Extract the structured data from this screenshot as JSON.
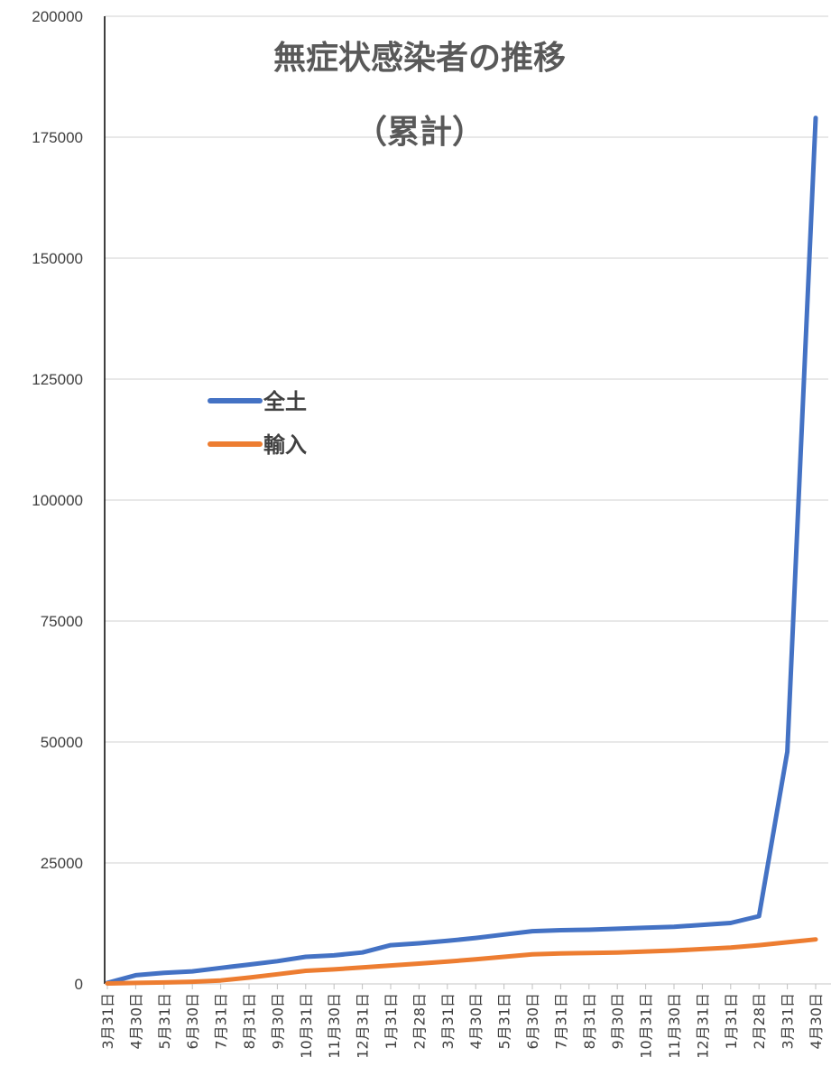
{
  "chart_data": {
    "type": "line",
    "title": "無症状感染者の推移",
    "subtitle": "（累計）",
    "xlabel": "",
    "ylabel": "",
    "ylim": [
      0,
      200000
    ],
    "yticks": [
      "0",
      "25000",
      "50000",
      "75000",
      "100000",
      "125000",
      "150000",
      "175000",
      "200000"
    ],
    "categories": [
      "3月31日",
      "4月30日",
      "5月31日",
      "6月30日",
      "7月31日",
      "8月31日",
      "9月30日",
      "10月31日",
      "11月30日",
      "12月31日",
      "1月31日",
      "2月28日",
      "3月31日",
      "4月30日",
      "5月31日",
      "6月30日",
      "7月31日",
      "8月31日",
      "9月30日",
      "10月31日",
      "11月30日",
      "12月31日",
      "1月31日",
      "2月28日",
      "3月31日",
      "4月30日"
    ],
    "series": [
      {
        "name": "全土",
        "color": "#4472C4",
        "values": [
          200,
          1800,
          2300,
          2600,
          3300,
          4000,
          4700,
          5600,
          5900,
          6500,
          8000,
          8400,
          8900,
          9500,
          10200,
          10900,
          11100,
          11200,
          11400,
          11600,
          11800,
          12200,
          12600,
          14000,
          48000,
          179000
        ]
      },
      {
        "name": "輸入",
        "color": "#ED7D31",
        "values": [
          100,
          200,
          300,
          450,
          700,
          1300,
          2000,
          2700,
          3000,
          3400,
          3800,
          4200,
          4600,
          5100,
          5600,
          6100,
          6300,
          6400,
          6500,
          6700,
          6900,
          7200,
          7500,
          8000,
          8600,
          9200
        ]
      }
    ],
    "grid": true,
    "legend_position": "left"
  }
}
